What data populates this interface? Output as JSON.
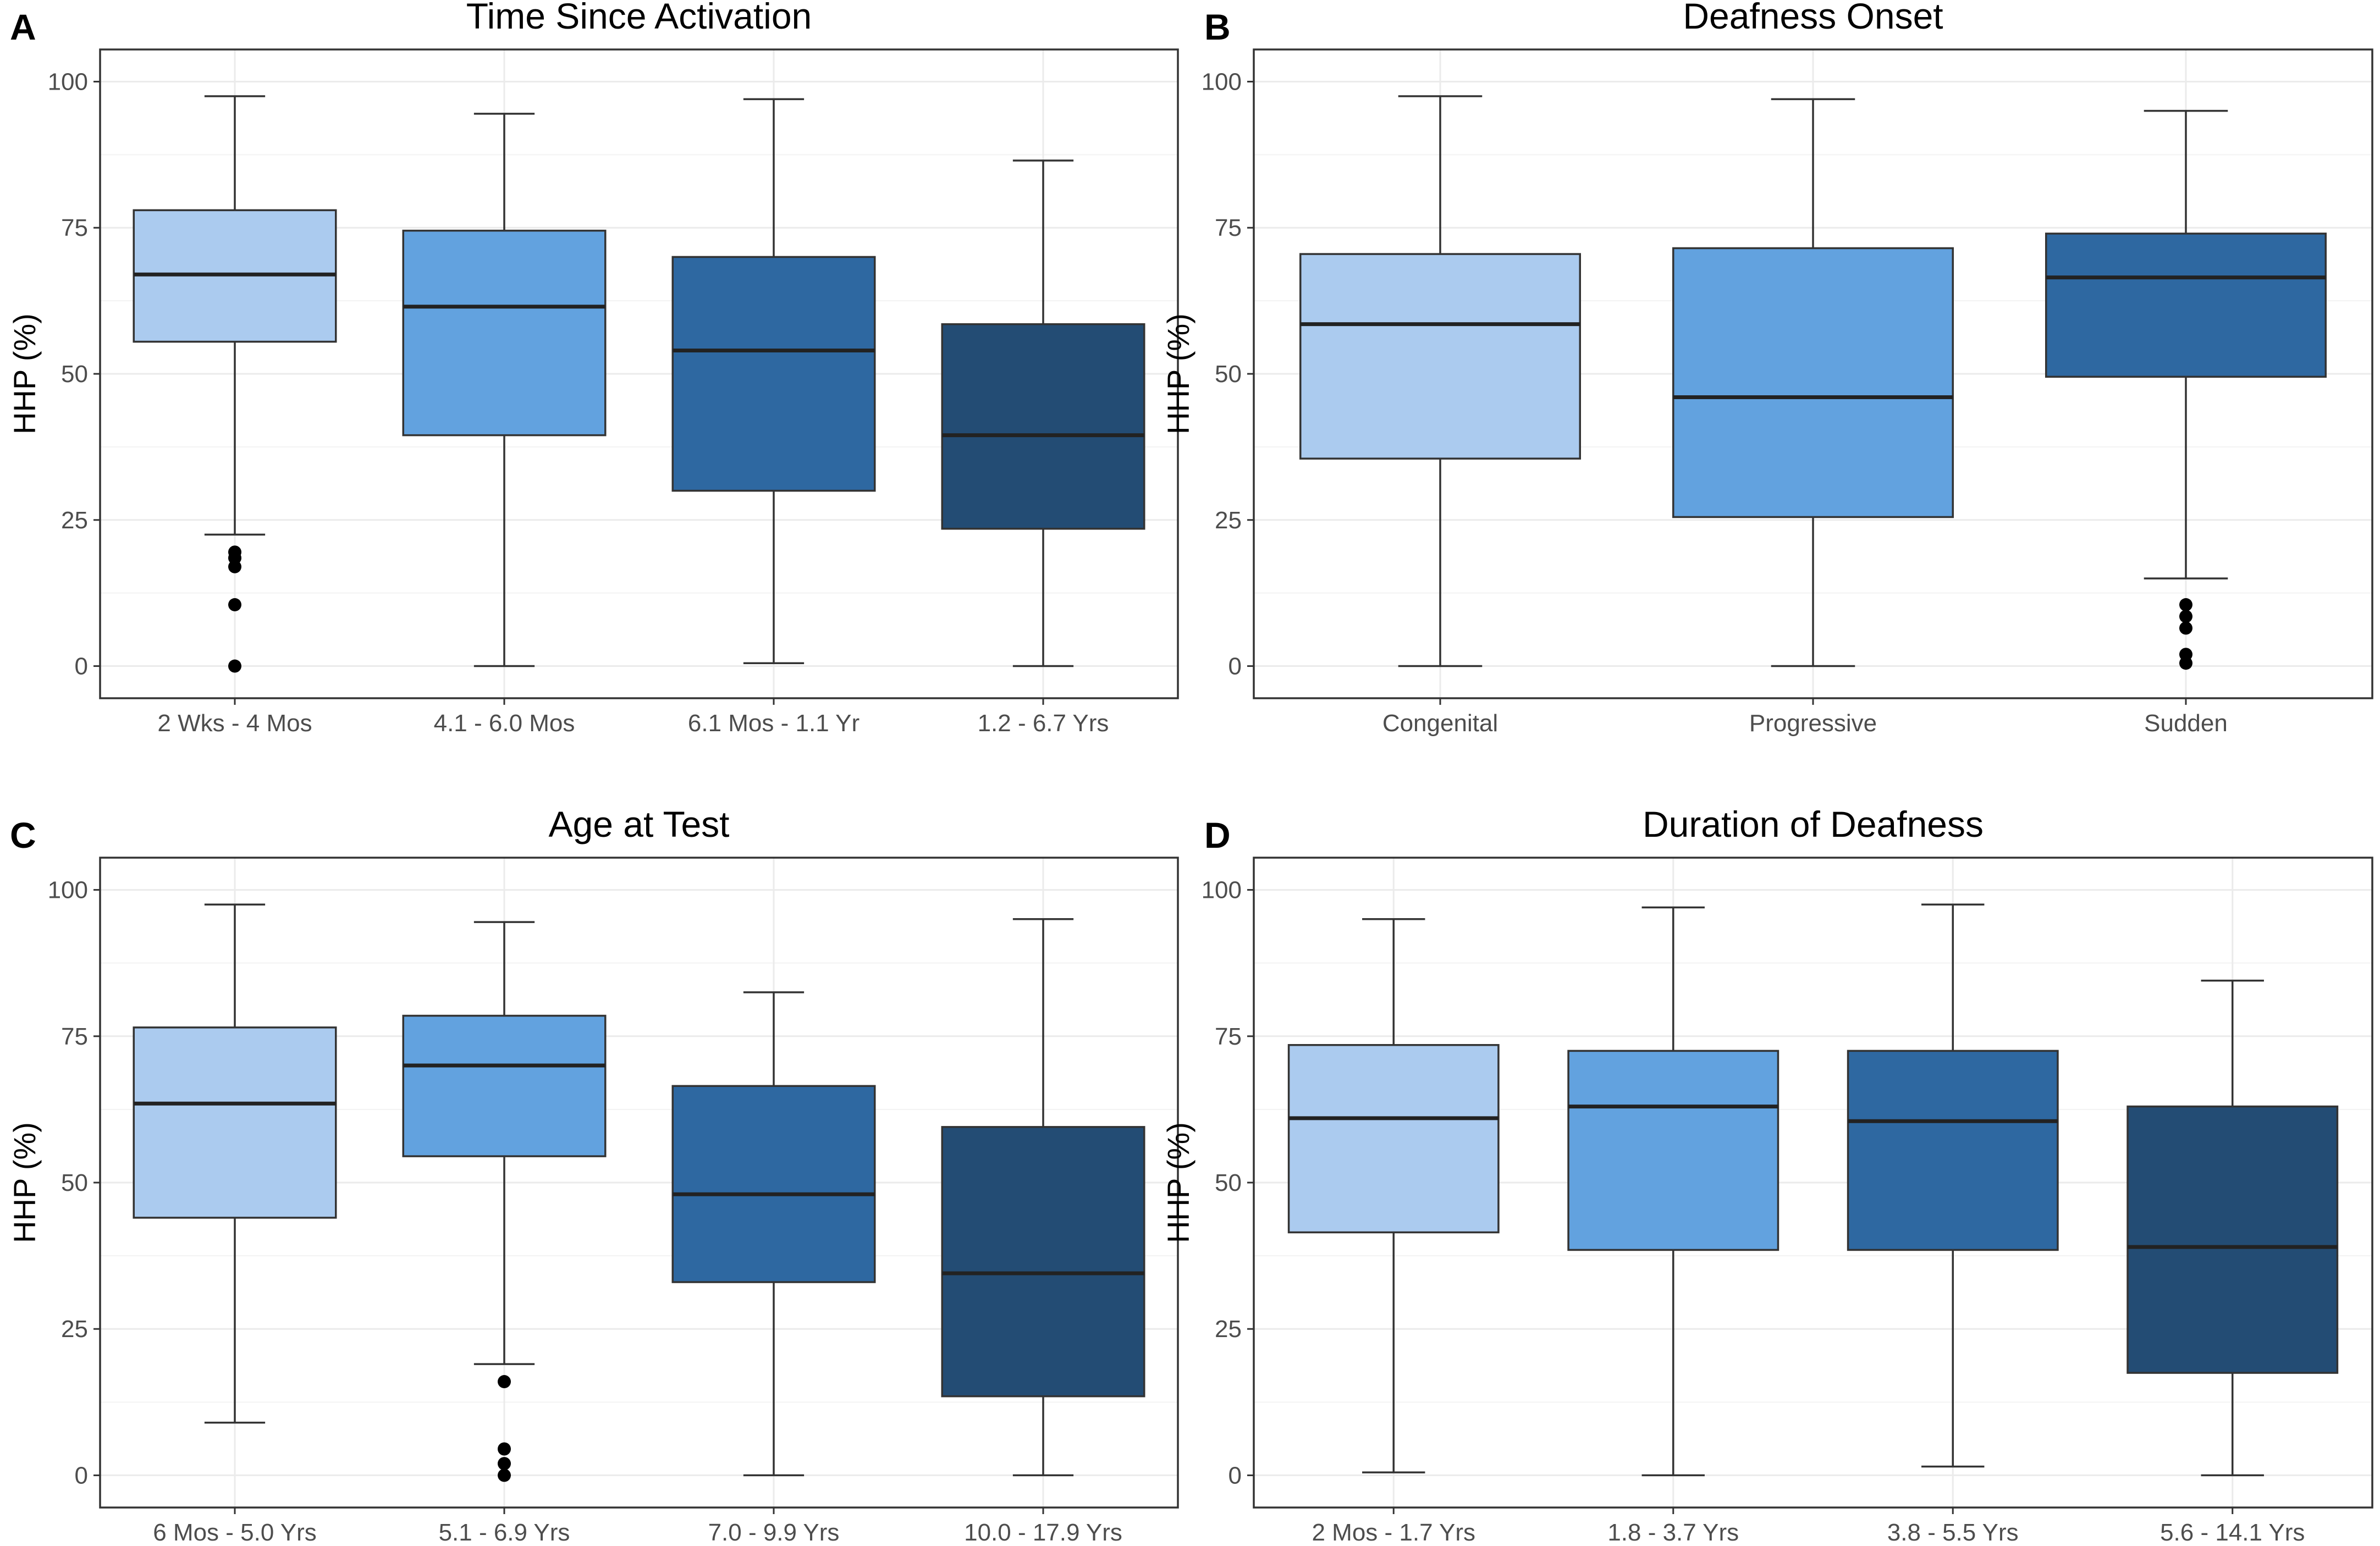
{
  "chart_data": [
    {
      "type": "box",
      "panel": "A",
      "title": "Time Since Activation",
      "xlabel": "",
      "ylabel": "HHP (%)",
      "ylim": [
        0,
        100
      ],
      "yticks": [
        0,
        25,
        50,
        75,
        100
      ],
      "grid": true,
      "categories": [
        "2 Wks - 4 Mos",
        "4.1 - 6.0 Mos",
        "6.1 Mos - 1.1 Yr",
        "1.2 - 6.7 Yrs"
      ],
      "boxes": [
        {
          "min": 22.5,
          "q1": 55.5,
          "median": 67,
          "q3": 78,
          "max": 97.5,
          "outliers": [
            19.5,
            18.5,
            17,
            10.5,
            0
          ],
          "color": "#abcbef"
        },
        {
          "min": 0,
          "q1": 39.5,
          "median": 61.5,
          "q3": 74.5,
          "max": 94.5,
          "outliers": [],
          "color": "#62a2df"
        },
        {
          "min": 0.5,
          "q1": 30,
          "median": 54,
          "q3": 70,
          "max": 97,
          "outliers": [],
          "color": "#2e68a1"
        },
        {
          "min": 0,
          "q1": 23.5,
          "median": 39.5,
          "q3": 58.5,
          "max": 86.5,
          "outliers": [],
          "color": "#234c74"
        }
      ]
    },
    {
      "type": "box",
      "panel": "B",
      "title": "Deafness Onset",
      "xlabel": "",
      "ylabel": "HHP (%)",
      "ylim": [
        0,
        100
      ],
      "yticks": [
        0,
        25,
        50,
        75,
        100
      ],
      "grid": true,
      "categories": [
        "Congenital",
        "Progressive",
        "Sudden"
      ],
      "boxes": [
        {
          "min": 0,
          "q1": 35.5,
          "median": 58.5,
          "q3": 70.5,
          "max": 97.5,
          "outliers": [],
          "color": "#abcbef"
        },
        {
          "min": 0,
          "q1": 25.5,
          "median": 46,
          "q3": 71.5,
          "max": 97,
          "outliers": [],
          "color": "#62a2df"
        },
        {
          "min": 15,
          "q1": 49.5,
          "median": 66.5,
          "q3": 74,
          "max": 95,
          "outliers": [
            10.5,
            8.5,
            6.5,
            2,
            0.5
          ],
          "color": "#2e68a1"
        }
      ]
    },
    {
      "type": "box",
      "panel": "C",
      "title": "Age at Test",
      "xlabel": "",
      "ylabel": "HHP (%)",
      "ylim": [
        0,
        100
      ],
      "yticks": [
        0,
        25,
        50,
        75,
        100
      ],
      "grid": true,
      "categories": [
        "6 Mos - 5.0 Yrs",
        "5.1 - 6.9 Yrs",
        "7.0 - 9.9 Yrs",
        "10.0 - 17.9 Yrs"
      ],
      "boxes": [
        {
          "min": 9,
          "q1": 44,
          "median": 63.5,
          "q3": 76.5,
          "max": 97.5,
          "outliers": [],
          "color": "#abcbef"
        },
        {
          "min": 19,
          "q1": 54.5,
          "median": 70,
          "q3": 78.5,
          "max": 94.5,
          "outliers": [
            16,
            4.5,
            2,
            0
          ],
          "color": "#62a2df"
        },
        {
          "min": 0,
          "q1": 33,
          "median": 48,
          "q3": 66.5,
          "max": 82.5,
          "outliers": [],
          "color": "#2e68a1"
        },
        {
          "min": 0,
          "q1": 13.5,
          "median": 34.5,
          "q3": 59.5,
          "max": 95,
          "outliers": [],
          "color": "#234c74"
        }
      ]
    },
    {
      "type": "box",
      "panel": "D",
      "title": "Duration of Deafness",
      "xlabel": "",
      "ylabel": "HHP (%)",
      "ylim": [
        0,
        100
      ],
      "yticks": [
        0,
        25,
        50,
        75,
        100
      ],
      "grid": true,
      "categories": [
        "2 Mos - 1.7 Yrs",
        "1.8 - 3.7 Yrs",
        "3.8 - 5.5 Yrs",
        "5.6 - 14.1 Yrs"
      ],
      "boxes": [
        {
          "min": 0.5,
          "q1": 41.5,
          "median": 61,
          "q3": 73.5,
          "max": 95,
          "outliers": [],
          "color": "#abcbef"
        },
        {
          "min": 0,
          "q1": 38.5,
          "median": 63,
          "q3": 72.5,
          "max": 97,
          "outliers": [],
          "color": "#62a2df"
        },
        {
          "min": 1.5,
          "q1": 38.5,
          "median": 60.5,
          "q3": 72.5,
          "max": 97.5,
          "outliers": [],
          "color": "#2e68a1"
        },
        {
          "min": 0,
          "q1": 17.5,
          "median": 39,
          "q3": 63,
          "max": 84.5,
          "outliers": [],
          "color": "#234c74"
        }
      ]
    }
  ]
}
